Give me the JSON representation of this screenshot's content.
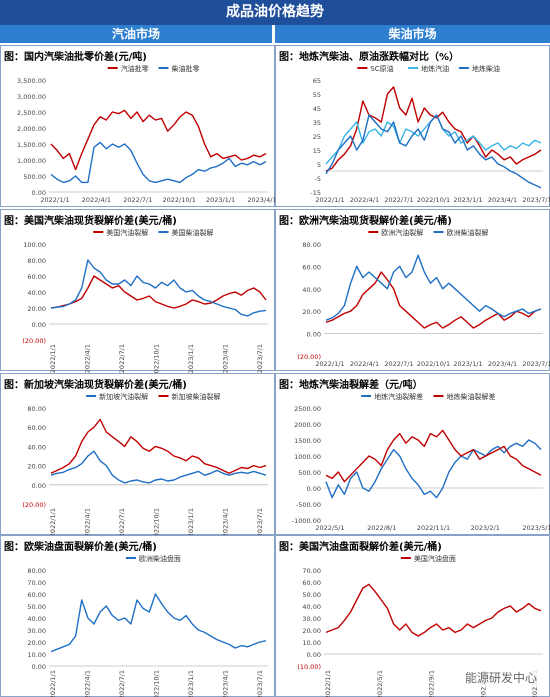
{
  "header": {
    "title": "成品油价格趋势",
    "left_column": "汽油市场",
    "right_column": "柴油市场"
  },
  "watermark": "能源研发中心",
  "colors": {
    "banner": "#1f4e9b",
    "column_header": "#2f7fd0",
    "red": "#c00000",
    "blue": "#1f6fc5",
    "lightblue": "#39b5e8"
  },
  "panels": [
    {
      "title": "图：国内汽柴油批零价差(元/吨)",
      "chart_data": {
        "type": "line",
        "y_ticks": [
          "3,500.00",
          "3,000.00",
          "2,500.00",
          "2,000.00",
          "1,500.00",
          "1,000.00",
          "500.00",
          "0.00"
        ],
        "x_ticks": [
          "2022/1/1",
          "2022/4/1",
          "2022/7/1",
          "2022/10/1",
          "2023/1/1",
          "2023/4/1"
        ],
        "x_rotated": false,
        "ylim": [
          0,
          3500
        ],
        "legend_position": "top",
        "series": [
          {
            "name": "汽油批零",
            "color": "#c00000",
            "values": [
              1500,
              1300,
              1050,
              1200,
              700,
              1200,
              1650,
              2100,
              2350,
              2250,
              2500,
              2450,
              2550,
              2300,
              2500,
              2200,
              2400,
              2250,
              2300,
              1900,
              2100,
              2350,
              2500,
              2400,
              2050,
              1500,
              1100,
              1200,
              1050,
              1100,
              1150,
              1000,
              1050,
              1150,
              1100,
              1200
            ]
          },
          {
            "name": "柴油批零",
            "color": "#1f6fc5",
            "values": [
              550,
              400,
              300,
              350,
              500,
              300,
              300,
              1400,
              1550,
              1350,
              1500,
              1400,
              1500,
              1300,
              900,
              550,
              350,
              300,
              350,
              400,
              350,
              300,
              450,
              550,
              700,
              650,
              750,
              800,
              900,
              1050,
              800,
              900,
              850,
              950,
              850,
              950
            ]
          }
        ]
      }
    },
    {
      "title": "图：地炼汽柴油、原油涨跌幅对比（%）",
      "chart_data": {
        "type": "line",
        "y_ticks": [
          "65",
          "55",
          "45",
          "35",
          "25",
          "15",
          "5",
          "-5",
          "-15"
        ],
        "x_ticks": [
          "2022/1/1",
          "2022/4/1",
          "2022/7/1",
          "2022/10/1",
          "2023/1/1",
          "2023/4/1",
          "2023/7/1"
        ],
        "x_rotated": false,
        "ylim": [
          -15,
          65
        ],
        "legend_position": "top",
        "series": [
          {
            "name": "SC原油",
            "color": "#c00000",
            "values": [
              0,
              2,
              8,
              12,
              18,
              30,
              50,
              40,
              38,
              35,
              55,
              60,
              45,
              40,
              52,
              35,
              45,
              40,
              38,
              42,
              35,
              30,
              28,
              20,
              25,
              18,
              10,
              15,
              12,
              8,
              10,
              5,
              8,
              10,
              12,
              15
            ]
          },
          {
            "name": "地炼汽油",
            "color": "#39b5e8",
            "values": [
              5,
              10,
              15,
              25,
              30,
              35,
              20,
              28,
              30,
              25,
              35,
              32,
              20,
              30,
              28,
              25,
              30,
              35,
              40,
              30,
              25,
              28,
              20,
              22,
              25,
              20,
              15,
              18,
              20,
              15,
              18,
              16,
              20,
              18,
              22,
              20
            ]
          },
          {
            "name": "地炼柴油",
            "color": "#1f6fc5",
            "values": [
              -2,
              5,
              15,
              20,
              25,
              15,
              22,
              40,
              35,
              30,
              28,
              35,
              20,
              18,
              25,
              30,
              22,
              35,
              40,
              30,
              28,
              20,
              25,
              15,
              18,
              12,
              8,
              10,
              5,
              3,
              0,
              -2,
              -5,
              -8,
              -10,
              -12
            ]
          }
        ]
      }
    },
    {
      "title": "图：美国汽柴油现货裂解价差(美元/桶)",
      "chart_data": {
        "type": "line",
        "y_ticks": [
          "100.00",
          "80.00",
          "60.00",
          "40.00",
          "20.00",
          "0.00",
          "(20.00)"
        ],
        "x_ticks": [
          "2022/1/1",
          "2022/4/1",
          "2022/7/1",
          "2022/10/1",
          "2023/1/1",
          "2023/4/1",
          "2023/7/1"
        ],
        "x_rotated": true,
        "ylim": [
          -20,
          100
        ],
        "legend_position": "top",
        "series": [
          {
            "name": "美国汽油裂解",
            "color": "#c00000",
            "values": [
              20,
              21,
              23,
              25,
              28,
              32,
              45,
              60,
              55,
              50,
              45,
              48,
              40,
              35,
              30,
              32,
              35,
              28,
              25,
              22,
              20,
              22,
              25,
              30,
              28,
              25,
              26,
              30,
              35,
              38,
              40,
              36,
              42,
              45,
              40,
              30
            ]
          },
          {
            "name": "美国柴油裂解",
            "color": "#1f6fc5",
            "values": [
              20,
              21,
              22,
              25,
              30,
              45,
              80,
              70,
              65,
              55,
              50,
              50,
              55,
              48,
              60,
              52,
              50,
              45,
              52,
              48,
              55,
              45,
              40,
              42,
              35,
              30,
              28,
              25,
              22,
              20,
              18,
              12,
              10,
              14,
              16,
              17
            ]
          }
        ]
      }
    },
    {
      "title": "图：欧洲汽柴油现货裂解价差(美元/桶)",
      "chart_data": {
        "type": "line",
        "y_ticks": [
          "80.00",
          "60.00",
          "40.00",
          "20.00",
          "0.00",
          "(20.00)"
        ],
        "x_ticks": [
          "2022/1/1",
          "2022/4/1",
          "2022/7/1",
          "2022/10/1",
          "2023/1/1",
          "2023/4/1",
          "2023/7/1"
        ],
        "x_rotated": false,
        "ylim": [
          -20,
          80
        ],
        "legend_position": "top",
        "series": [
          {
            "name": "欧洲汽油裂解",
            "color": "#c00000",
            "values": [
              10,
              12,
              15,
              18,
              20,
              25,
              35,
              40,
              45,
              55,
              48,
              40,
              25,
              20,
              15,
              10,
              5,
              8,
              10,
              5,
              8,
              12,
              15,
              10,
              5,
              8,
              12,
              15,
              18,
              12,
              15,
              20,
              18,
              15,
              20,
              22
            ]
          },
          {
            "name": "欧洲柴油裂解",
            "color": "#1f6fc5",
            "values": [
              12,
              14,
              18,
              25,
              45,
              60,
              50,
              55,
              50,
              45,
              40,
              55,
              60,
              50,
              55,
              70,
              55,
              45,
              50,
              40,
              45,
              40,
              35,
              30,
              25,
              20,
              25,
              22,
              18,
              15,
              18,
              20,
              22,
              18,
              20,
              22
            ]
          }
        ]
      }
    },
    {
      "title": "图：新加坡汽柴油现货裂解价差(美元/桶)",
      "chart_data": {
        "type": "line",
        "y_ticks": [
          "80.00",
          "60.00",
          "40.00",
          "20.00",
          "0.00",
          "(20.00)"
        ],
        "x_ticks": [
          "2022/1/1",
          "2022/4/1",
          "2022/7/1",
          "2022/10/1",
          "2023/1/1",
          "2023/4/1",
          "2023/7/1"
        ],
        "x_rotated": true,
        "ylim": [
          -20,
          80
        ],
        "legend_position": "top",
        "series": [
          {
            "name": "新加坡汽油裂解",
            "color": "#1f6fc5",
            "values": [
              10,
              12,
              13,
              16,
              18,
              22,
              30,
              35,
              25,
              20,
              10,
              5,
              2,
              4,
              5,
              3,
              2,
              5,
              6,
              4,
              5,
              8,
              10,
              12,
              14,
              10,
              12,
              15,
              12,
              10,
              12,
              13,
              12,
              14,
              12,
              10
            ]
          },
          {
            "name": "新加坡柴油裂解",
            "color": "#c00000",
            "values": [
              12,
              15,
              18,
              22,
              30,
              45,
              55,
              60,
              68,
              55,
              50,
              45,
              40,
              50,
              45,
              38,
              35,
              40,
              38,
              35,
              30,
              28,
              25,
              30,
              28,
              22,
              20,
              18,
              15,
              12,
              15,
              18,
              17,
              20,
              18,
              20
            ]
          }
        ]
      }
    },
    {
      "title": "图：地炼汽柴油裂解差（元/吨）",
      "chart_data": {
        "type": "line",
        "y_ticks": [
          "2500.00",
          "2000.00",
          "1500.00",
          "1000.00",
          "500.00",
          "0.00",
          "-500.00",
          "-1000.00"
        ],
        "x_ticks": [
          "2022/5/1",
          "2022/8/1",
          "2022/11/1",
          "2023/2/1",
          "2023/5/1"
        ],
        "x_rotated": false,
        "ylim": [
          -1000,
          2500
        ],
        "legend_position": "top",
        "series": [
          {
            "name": "地炼汽油裂解差",
            "color": "#1f6fc5",
            "values": [
              200,
              -300,
              100,
              -200,
              300,
              500,
              0,
              -100,
              200,
              600,
              900,
              1200,
              1000,
              600,
              300,
              100,
              -200,
              -100,
              -300,
              0,
              500,
              800,
              1000,
              900,
              1200,
              1100,
              1000,
              1200,
              1300,
              1100,
              1300,
              1400,
              1300,
              1500,
              1400,
              1200
            ]
          },
          {
            "name": "地炼柴油裂解差",
            "color": "#c00000",
            "values": [
              400,
              300,
              500,
              200,
              400,
              600,
              800,
              1000,
              900,
              700,
              1200,
              1500,
              1700,
              1400,
              1600,
              1500,
              1300,
              1700,
              1600,
              1800,
              1500,
              1200,
              1000,
              1100,
              1200,
              900,
              1000,
              1100,
              1200,
              1300,
              1000,
              900,
              700,
              600,
              500,
              400
            ]
          }
        ]
      }
    },
    {
      "title": "图：欧柴油盘面裂解价差(美元/桶)",
      "chart_data": {
        "type": "line",
        "y_ticks": [
          "80.00",
          "70.00",
          "60.00",
          "50.00",
          "40.00",
          "30.00",
          "20.00",
          "10.00",
          "0.00"
        ],
        "x_ticks": [
          "2022/1/1",
          "2022/4/1",
          "2022/7/1",
          "2022/10/1",
          "2023/1/1",
          "2023/4/1",
          "2023/7/1"
        ],
        "x_rotated": true,
        "ylim": [
          0,
          80
        ],
        "legend_position": "top",
        "series": [
          {
            "name": "欧洲柴油盘面",
            "color": "#1f6fc5",
            "values": [
              12,
              14,
              16,
              18,
              25,
              55,
              40,
              35,
              45,
              50,
              42,
              38,
              40,
              35,
              55,
              48,
              45,
              60,
              52,
              45,
              40,
              38,
              42,
              35,
              30,
              28,
              25,
              22,
              20,
              18,
              15,
              17,
              16,
              18,
              20,
              21
            ]
          }
        ]
      }
    },
    {
      "title": "图：美国汽油盘面裂解价差(美元/桶)",
      "chart_data": {
        "type": "line",
        "y_ticks": [
          "70.00",
          "60.00",
          "50.00",
          "40.00",
          "30.00",
          "20.00",
          "10.00",
          "0.00",
          "(10.00)"
        ],
        "x_ticks": [
          "2022/1/1",
          "2022/5/1",
          "2022/9/1",
          "2023/1/1",
          "2023/5/1"
        ],
        "x_rotated": true,
        "ylim": [
          -10,
          70
        ],
        "legend_position": "top",
        "series": [
          {
            "name": "美国汽油盘面",
            "color": "#c00000",
            "values": [
              18,
              20,
              22,
              28,
              35,
              45,
              55,
              58,
              52,
              45,
              38,
              25,
              20,
              25,
              18,
              15,
              18,
              22,
              25,
              20,
              22,
              18,
              20,
              25,
              22,
              25,
              28,
              30,
              35,
              38,
              40,
              35,
              38,
              42,
              38,
              36
            ]
          }
        ]
      }
    }
  ]
}
